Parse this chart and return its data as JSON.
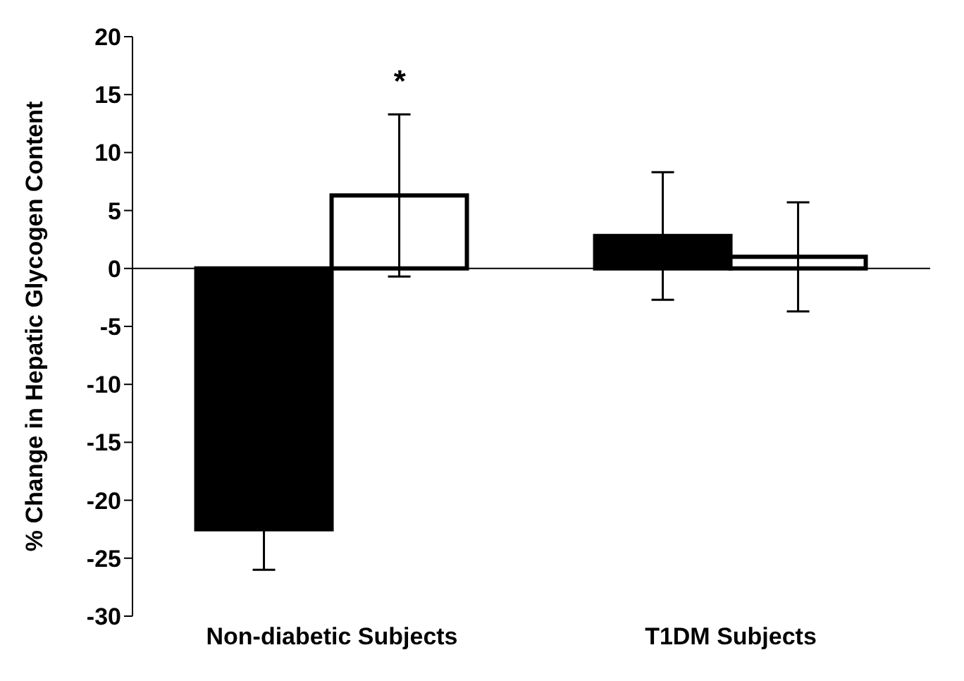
{
  "chart_data": {
    "type": "bar",
    "ylabel": "% Change in Hepatic Glycogen Content",
    "categories": [
      "Non-diabetic Subjects",
      "T1DM Subjects"
    ],
    "series": [
      {
        "color": "#000000",
        "values": [
          -22.5,
          2.8
        ],
        "errors": [
          3.5,
          5.5
        ]
      },
      {
        "color": "#ffffff",
        "values": [
          6.3,
          1.0
        ],
        "errors": [
          7.0,
          4.7
        ]
      }
    ],
    "ylim": [
      -30,
      20
    ],
    "yticks": [
      -30,
      -25,
      -20,
      -15,
      -10,
      -5,
      0,
      5,
      10,
      15,
      20
    ],
    "annotations": [
      "*"
    ],
    "ref_lines": [
      {
        "axis": "y",
        "value": 0,
        "color": "#000000"
      }
    ],
    "legend": false
  }
}
